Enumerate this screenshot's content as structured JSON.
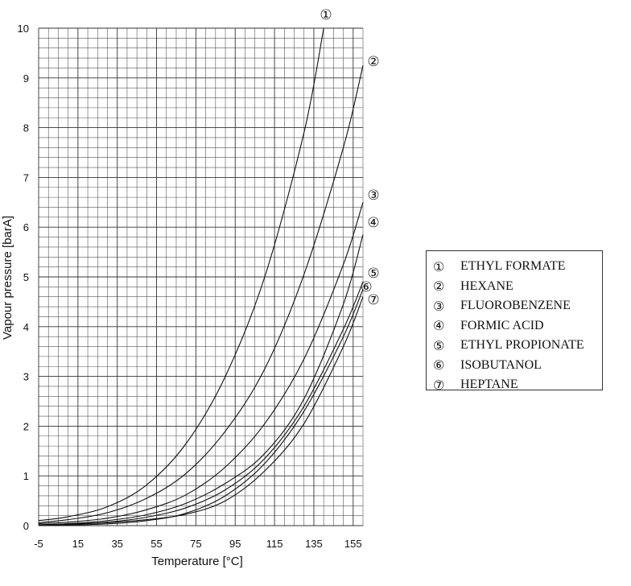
{
  "chart_data": {
    "type": "line",
    "xlabel": "Temperature [°C]",
    "ylabel": "Vapour pressure [barA]",
    "xlim": [
      -5,
      160
    ],
    "ylim": [
      0,
      10
    ],
    "x_ticks": [
      "-5",
      "15",
      "35",
      "55",
      "75",
      "95",
      "115",
      "135",
      "155"
    ],
    "y_ticks": [
      "0",
      "1",
      "2",
      "3",
      "4",
      "5",
      "6",
      "7",
      "8",
      "9",
      "10"
    ],
    "grid": true,
    "legend_position": "right",
    "series": [
      {
        "marker": "①",
        "name": "ETHYL FORMATE",
        "x": [
          -5,
          10,
          30,
          50,
          70,
          90,
          110,
          130,
          140
        ],
        "y": [
          0.1,
          0.18,
          0.38,
          0.82,
          1.65,
          3.0,
          5.0,
          7.9,
          10.0
        ]
      },
      {
        "marker": "②",
        "name": "HEXANE",
        "x": [
          -5,
          10,
          30,
          50,
          70,
          90,
          110,
          130,
          150,
          160
        ],
        "y": [
          0.06,
          0.12,
          0.26,
          0.55,
          1.05,
          1.9,
          3.15,
          5.05,
          7.6,
          9.25
        ]
      },
      {
        "marker": "③",
        "name": "FLUOROBENZENE",
        "x": [
          -5,
          10,
          30,
          50,
          70,
          90,
          110,
          130,
          150,
          160
        ],
        "y": [
          0.04,
          0.07,
          0.15,
          0.32,
          0.62,
          1.18,
          2.05,
          3.35,
          5.25,
          6.5
        ]
      },
      {
        "marker": "④",
        "name": "FORMIC ACID",
        "x": [
          -5,
          10,
          30,
          50,
          70,
          90,
          110,
          130,
          150,
          160
        ],
        "y": [
          0.02,
          0.04,
          0.1,
          0.22,
          0.45,
          0.85,
          1.45,
          2.55,
          4.45,
          5.85
        ]
      },
      {
        "marker": "⑤",
        "name": "ETHYL PROPIONATE",
        "x": [
          -5,
          10,
          30,
          50,
          70,
          90,
          110,
          130,
          150,
          160
        ],
        "y": [
          0.01,
          0.03,
          0.07,
          0.17,
          0.36,
          0.72,
          1.35,
          2.4,
          3.95,
          4.9
        ]
      },
      {
        "marker": "⑥",
        "name": "ISOBUTANOL",
        "x": [
          -5,
          10,
          30,
          50,
          70,
          90,
          110,
          130,
          150,
          160
        ],
        "y": [
          0.005,
          0.012,
          0.035,
          0.1,
          0.25,
          0.6,
          1.25,
          2.3,
          3.8,
          4.75
        ]
      },
      {
        "marker": "⑦",
        "name": "HEPTANE",
        "x": [
          -5,
          10,
          30,
          50,
          70,
          90,
          110,
          130,
          150,
          160
        ],
        "y": [
          0.01,
          0.02,
          0.06,
          0.12,
          0.23,
          0.5,
          1.1,
          2.05,
          3.6,
          4.6
        ]
      }
    ]
  }
}
